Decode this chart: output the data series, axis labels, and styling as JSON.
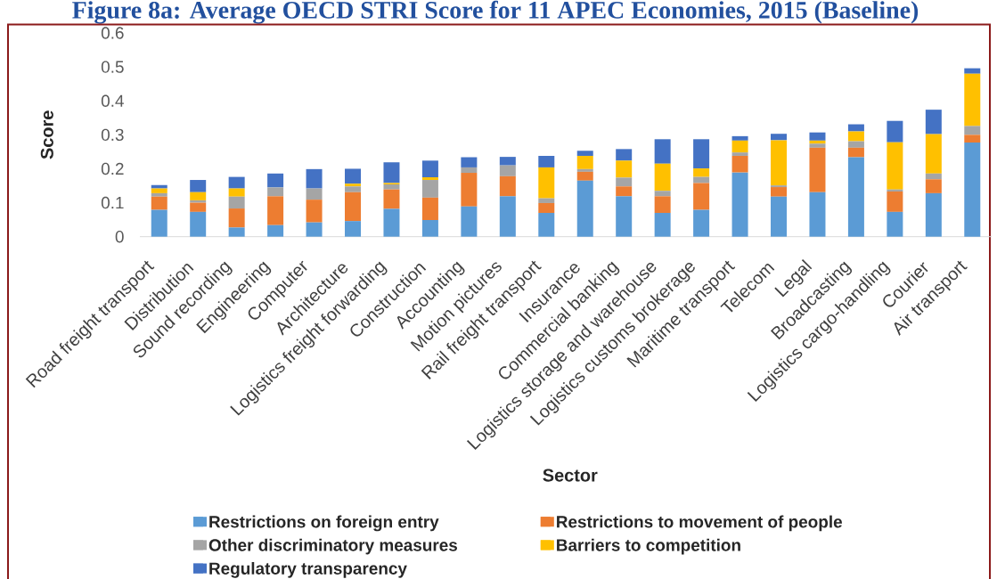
{
  "chart_data": {
    "type": "bar",
    "stacked": true,
    "title": "Figure 8a: Average OECD STRI Score for 11 APEC Economies, 2015 (Baseline)",
    "xlabel": "Sector",
    "ylabel": "Score",
    "categories": [
      "Road freight transport",
      "Distribution",
      "Sound recording",
      "Engineering",
      "Computer",
      "Architecture",
      "Logistics freight forwarding",
      "Construction",
      "Accounting",
      "Motion pictures",
      "Rail freight transport",
      "Insurance",
      "Commercial banking",
      "Logistics storage and warehouse",
      "Logistics customs brokerage",
      "Maritime transport",
      "Telecom",
      "Legal",
      "Broadcasting",
      "Logistics cargo-handling",
      "Courier",
      "Air transport"
    ],
    "series": [
      {
        "name": "Restrictions on foreign entry",
        "color": "#5b9bd5",
        "values": [
          0.079,
          0.073,
          0.027,
          0.034,
          0.042,
          0.046,
          0.082,
          0.049,
          0.089,
          0.119,
          0.07,
          0.165,
          0.119,
          0.07,
          0.079,
          0.189,
          0.118,
          0.131,
          0.234,
          0.073,
          0.128,
          0.277
        ]
      },
      {
        "name": "Restrictions to movement of people",
        "color": "#ed7d31",
        "values": [
          0.039,
          0.027,
          0.056,
          0.085,
          0.067,
          0.085,
          0.057,
          0.066,
          0.099,
          0.059,
          0.029,
          0.026,
          0.029,
          0.049,
          0.079,
          0.049,
          0.028,
          0.131,
          0.028,
          0.06,
          0.041,
          0.023
        ]
      },
      {
        "name": "Other discriminatory measures",
        "color": "#a5a5a5",
        "values": [
          0.01,
          0.007,
          0.035,
          0.026,
          0.033,
          0.017,
          0.015,
          0.052,
          0.016,
          0.032,
          0.014,
          0.008,
          0.026,
          0.016,
          0.018,
          0.01,
          0.005,
          0.012,
          0.019,
          0.006,
          0.017,
          0.026
        ]
      },
      {
        "name": "Barriers to competition",
        "color": "#ffc000",
        "values": [
          0.014,
          0.024,
          0.024,
          null,
          null,
          0.008,
          0.004,
          0.008,
          null,
          null,
          0.091,
          0.039,
          0.05,
          0.08,
          0.025,
          0.035,
          0.133,
          0.009,
          0.029,
          0.139,
          0.116,
          0.154
        ]
      },
      {
        "name": "Regulatory transparency",
        "color": "#4472c4",
        "values": [
          0.01,
          0.036,
          0.034,
          0.041,
          0.057,
          0.044,
          0.061,
          0.049,
          0.03,
          0.025,
          0.034,
          0.015,
          0.034,
          0.072,
          0.086,
          0.013,
          0.019,
          0.024,
          0.021,
          0.063,
          0.072,
          0.016
        ]
      }
    ],
    "ylim": [
      0,
      0.6
    ],
    "yticks": [
      0,
      0.1,
      0.2,
      0.3,
      0.4,
      0.5,
      0.6
    ],
    "legend": "bottom"
  }
}
